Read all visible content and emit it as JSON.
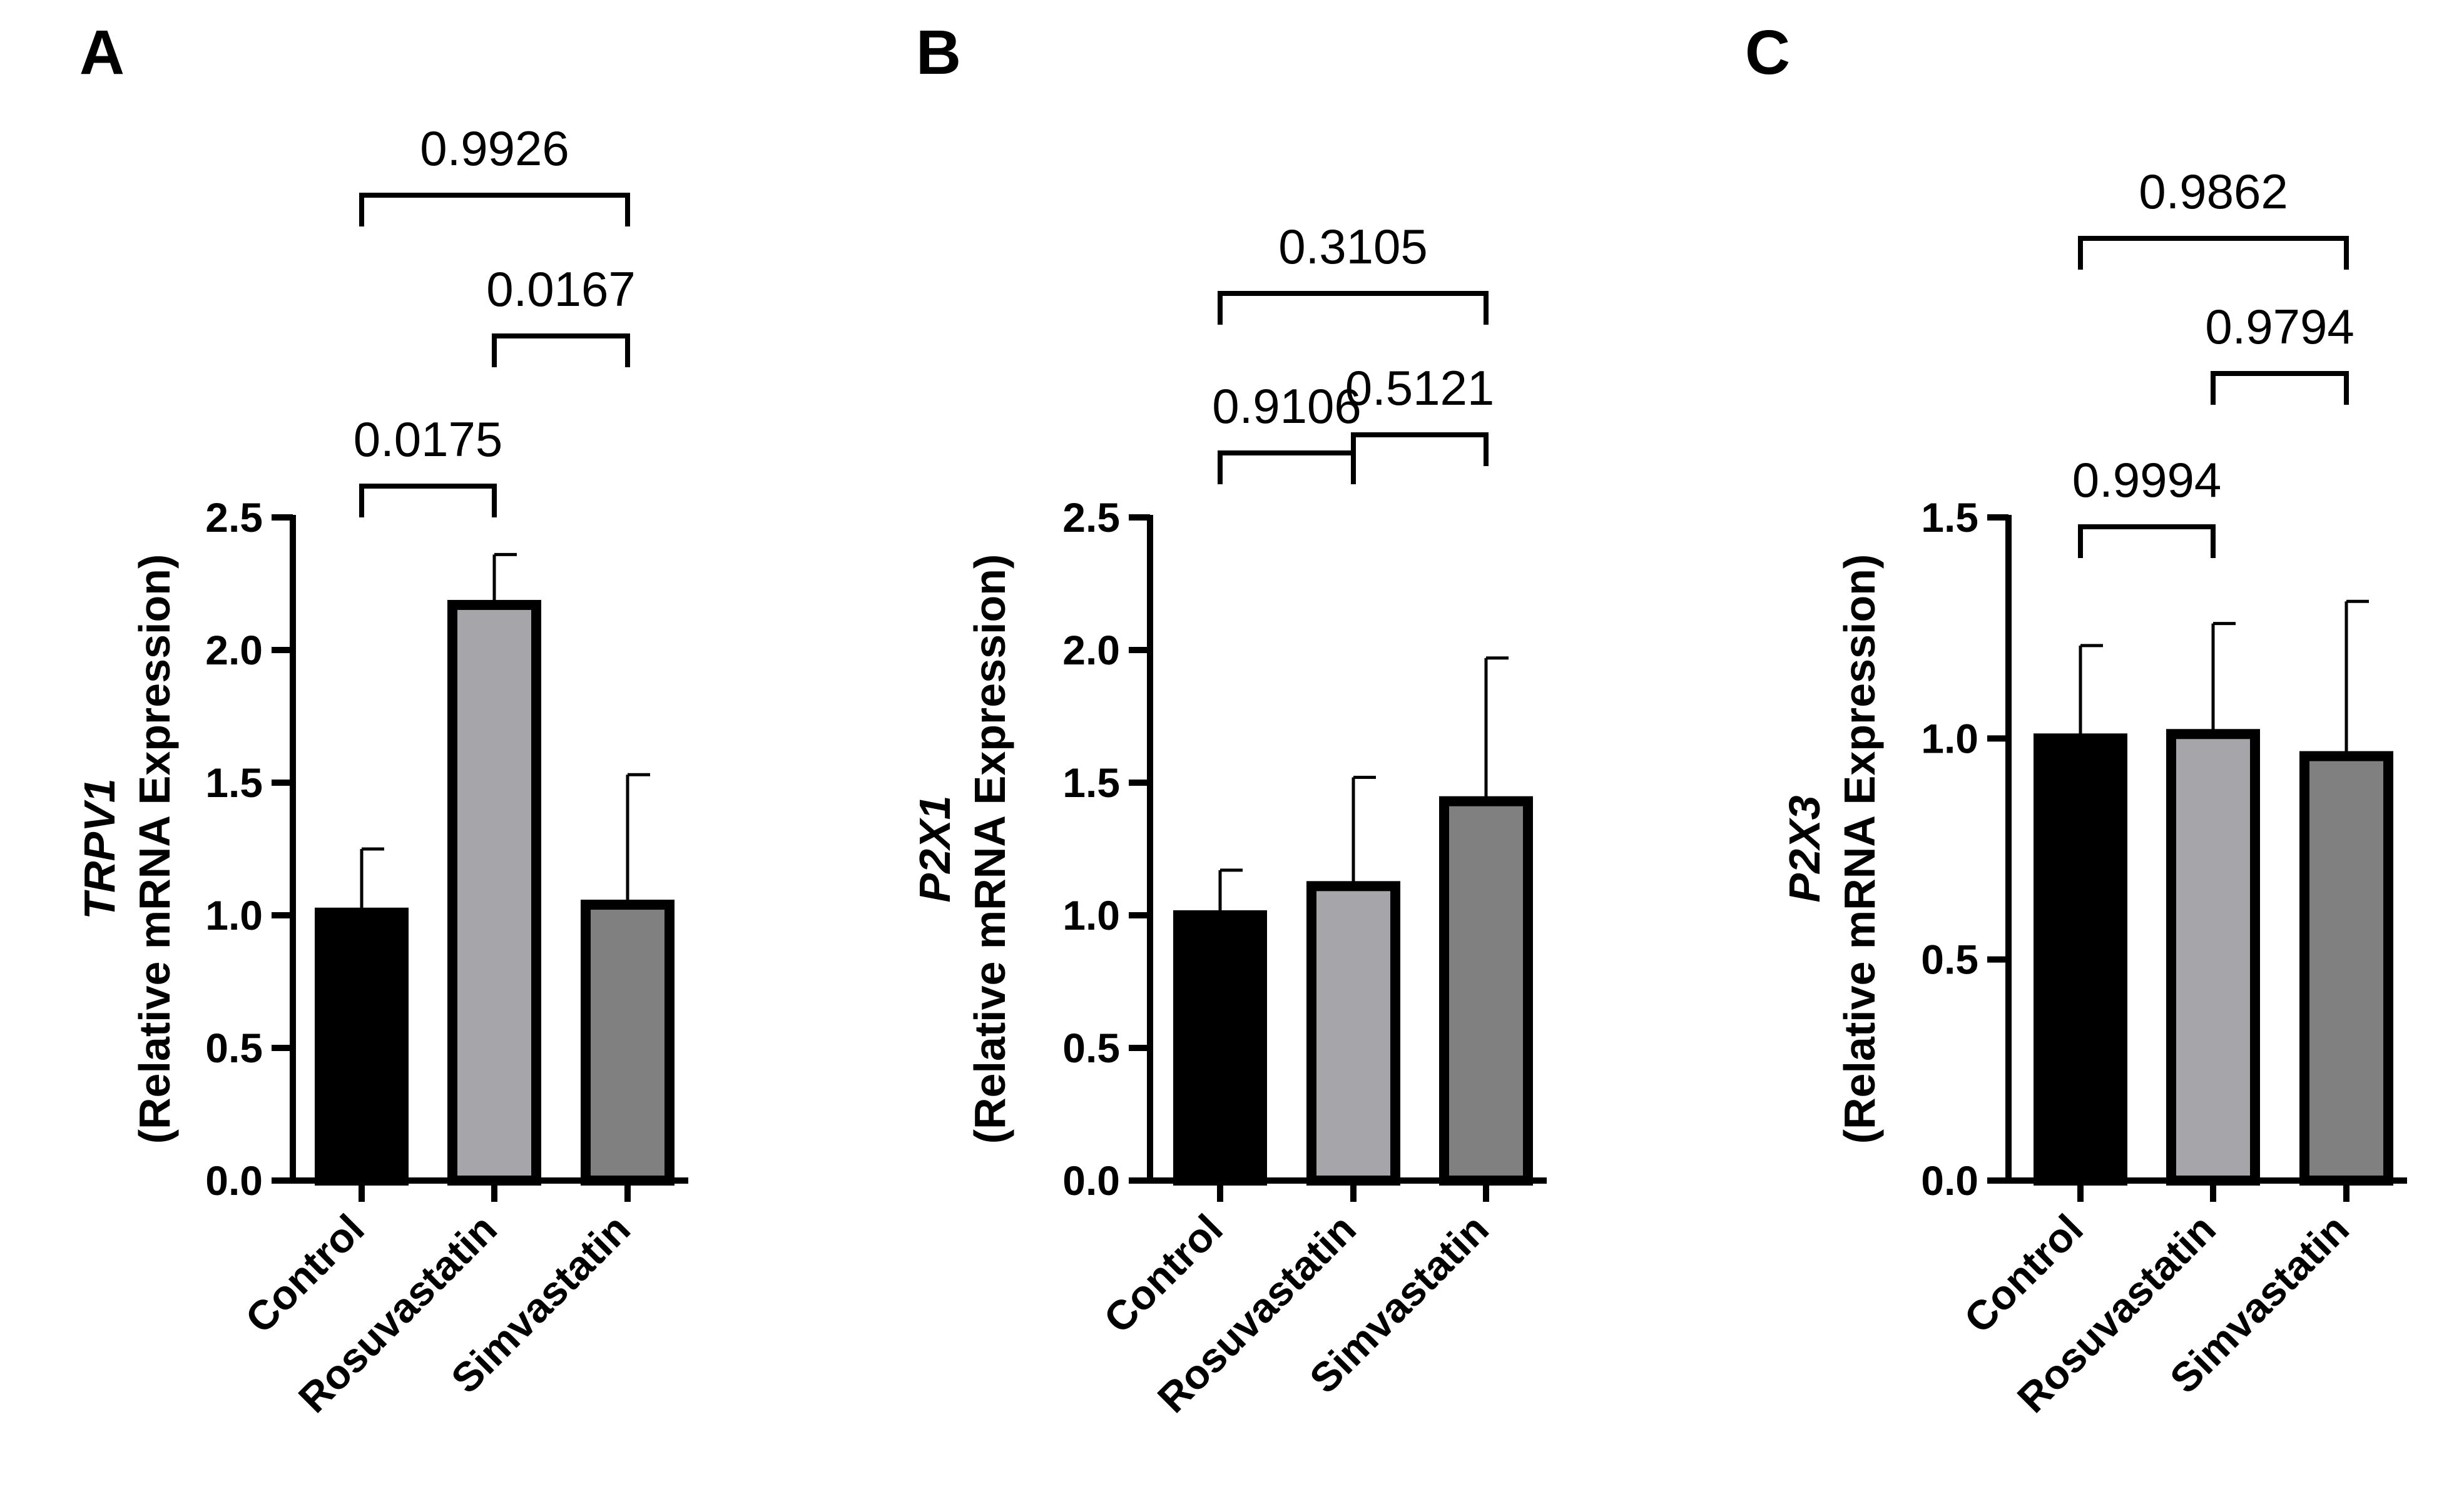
{
  "chart_data": [
    {
      "panel": "A",
      "type": "bar",
      "title": "",
      "ylabel_gene": "TRPV1",
      "ylabel": "(Relative mRNA Expression)",
      "categories": [
        "Control",
        "Rosuvastatin",
        "Simvastatin"
      ],
      "values": [
        1.01,
        2.17,
        1.04
      ],
      "errors": [
        0.24,
        0.19,
        0.49
      ],
      "fill_colors": [
        "#000000",
        "#a6a6aa",
        "#808080"
      ],
      "ylim": [
        0,
        2.5
      ],
      "ytick_values": [
        0,
        0.5,
        1.0,
        1.5,
        2.0,
        2.5
      ],
      "ytick_labels": [
        "0.0",
        "0.5",
        "1.0",
        "1.5",
        "2.0",
        "2.5"
      ],
      "comparisons": [
        {
          "from": 0,
          "to": 1,
          "p": "0.0175"
        },
        {
          "from": 1,
          "to": 2,
          "p": "0.0167"
        },
        {
          "from": 0,
          "to": 2,
          "p": "0.9926"
        }
      ]
    },
    {
      "panel": "B",
      "type": "bar",
      "title": "",
      "ylabel_gene": "P2X1",
      "ylabel": "(Relative mRNA Expression)",
      "categories": [
        "Control",
        "Rosuvastatin",
        "Simvastatin"
      ],
      "values": [
        1.0,
        1.11,
        1.43
      ],
      "errors": [
        0.17,
        0.41,
        0.54
      ],
      "fill_colors": [
        "#000000",
        "#a6a6aa",
        "#808080"
      ],
      "ylim": [
        0,
        2.5
      ],
      "ytick_values": [
        0,
        0.5,
        1.0,
        1.5,
        2.0,
        2.5
      ],
      "ytick_labels": [
        "0.0",
        "0.5",
        "1.0",
        "1.5",
        "2.0",
        "2.5"
      ],
      "comparisons": [
        {
          "from": 0,
          "to": 1,
          "p": "0.9106"
        },
        {
          "from": 1,
          "to": 2,
          "p": "0.5121"
        },
        {
          "from": 0,
          "to": 2,
          "p": "0.3105"
        }
      ]
    },
    {
      "panel": "C",
      "type": "bar",
      "title": "",
      "ylabel_gene": "P2X3",
      "ylabel": "(Relative mRNA Expression)",
      "categories": [
        "Control",
        "Rosuvastatin",
        "Simvastatin"
      ],
      "values": [
        1.0,
        1.01,
        0.96
      ],
      "errors": [
        0.21,
        0.25,
        0.35
      ],
      "fill_colors": [
        "#000000",
        "#a6a6aa",
        "#808080"
      ],
      "ylim": [
        0,
        1.5
      ],
      "ytick_values": [
        0,
        0.5,
        1.0,
        1.5
      ],
      "ytick_labels": [
        "0.0",
        "0.5",
        "1.0",
        "1.5"
      ],
      "comparisons": [
        {
          "from": 0,
          "to": 1,
          "p": "0.9994"
        },
        {
          "from": 1,
          "to": 2,
          "p": "0.9794"
        },
        {
          "from": 0,
          "to": 2,
          "p": "0.9862"
        }
      ]
    }
  ]
}
